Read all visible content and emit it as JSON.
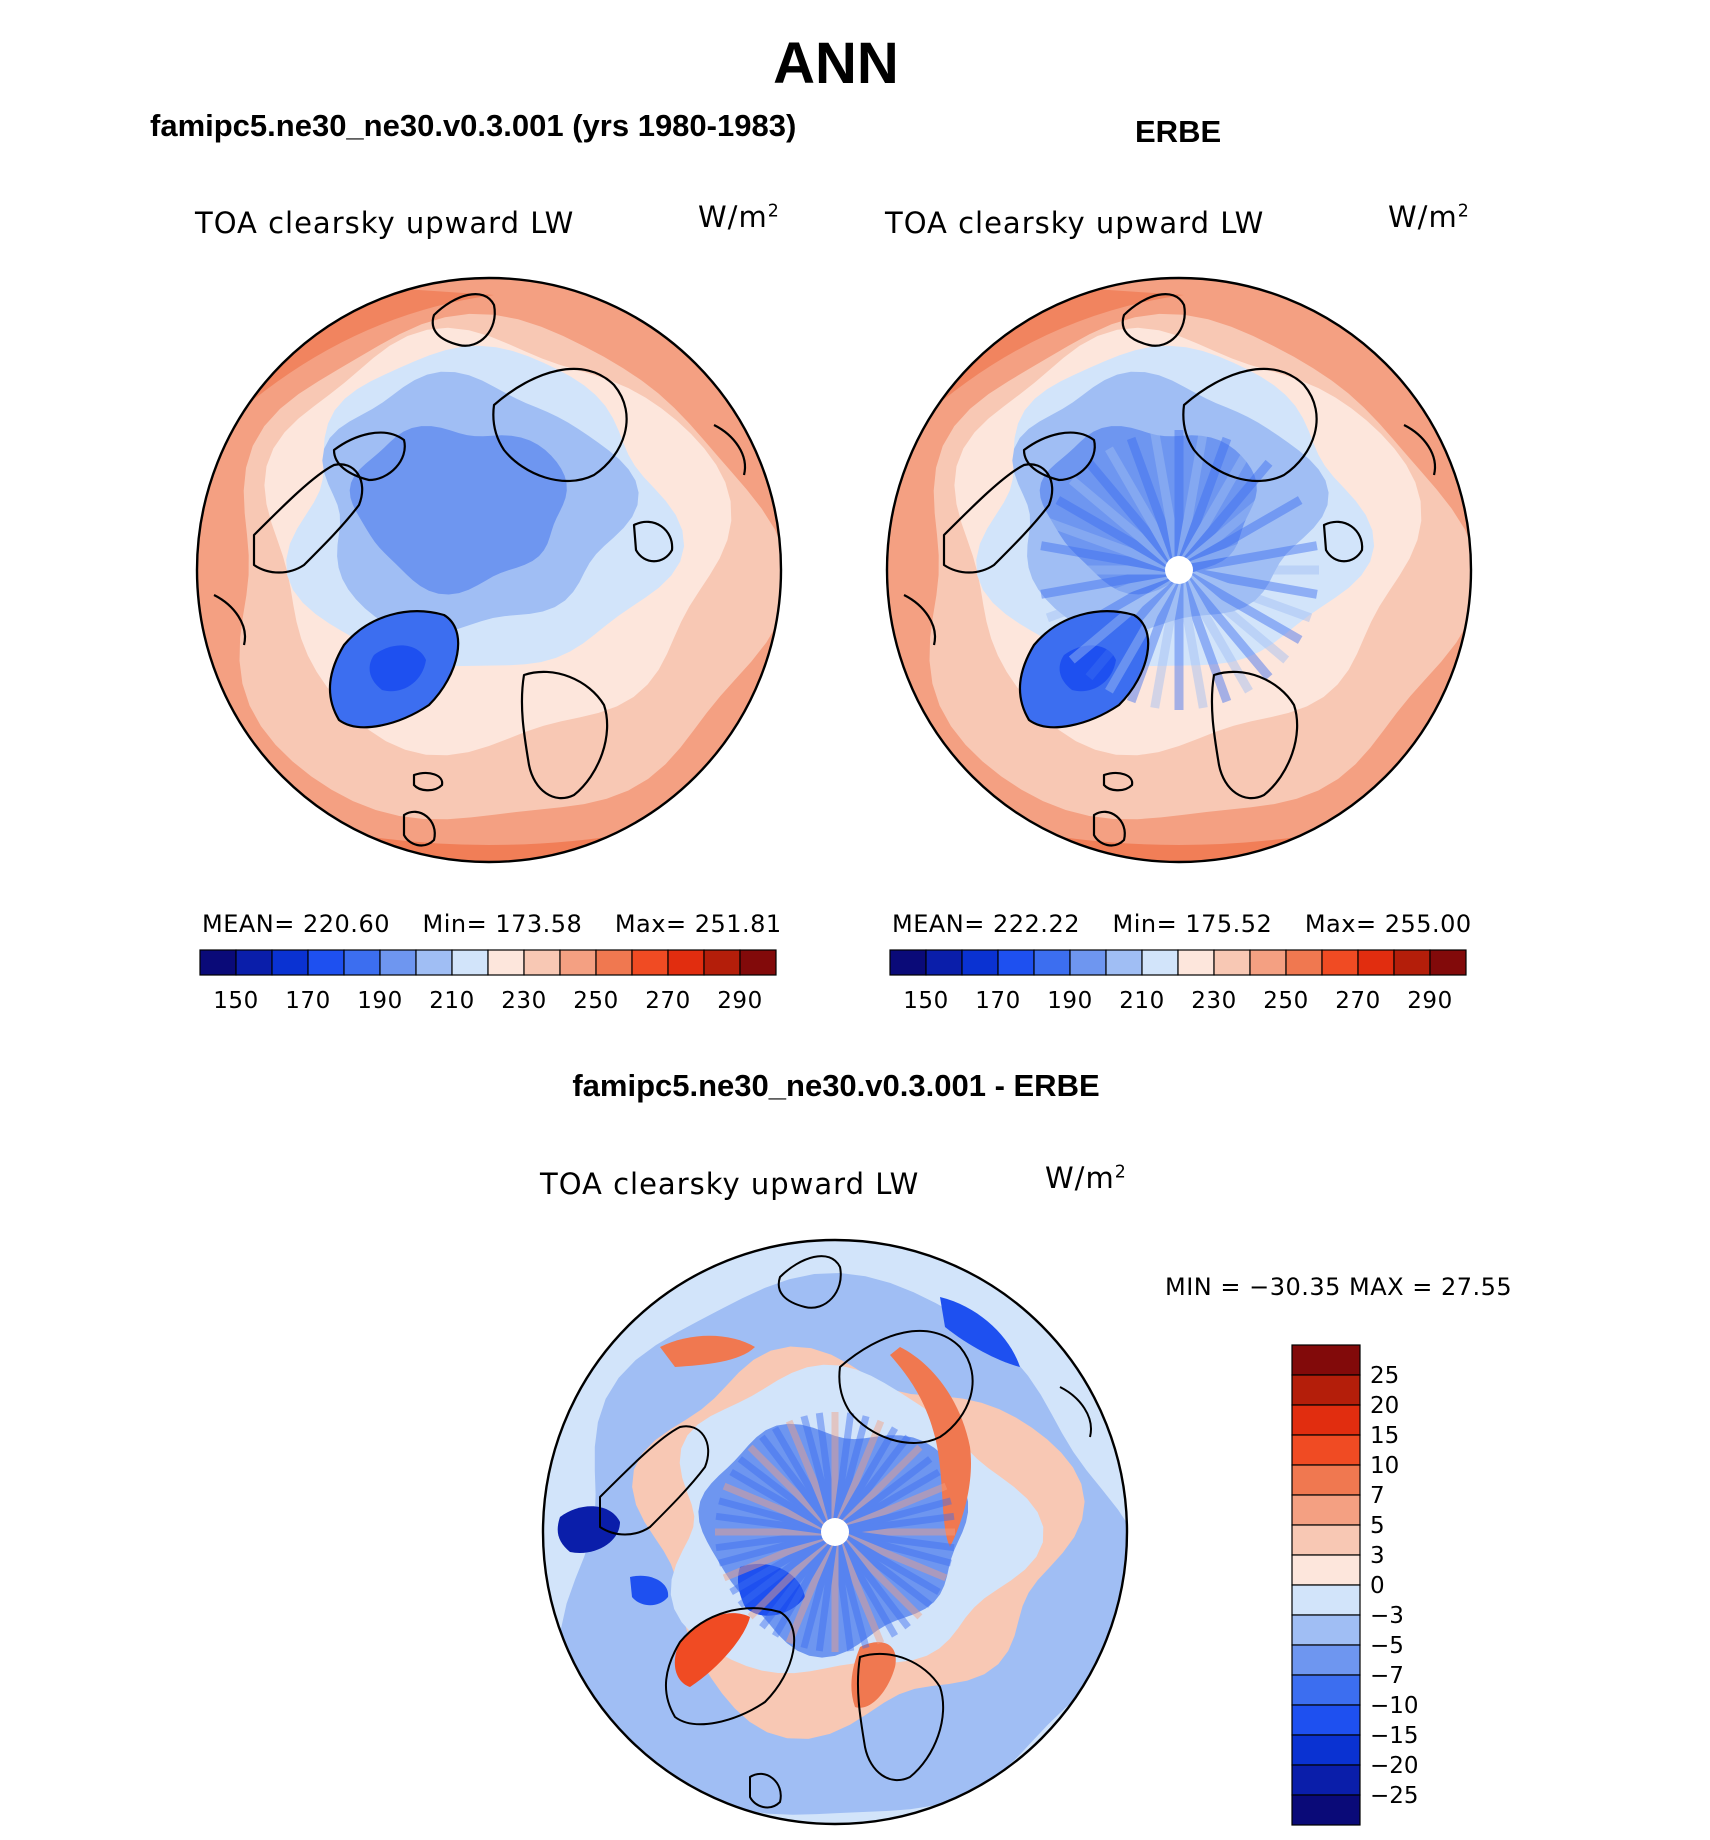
{
  "title": "ANN",
  "colors": {
    "map_scale": [
      "#0a0a78",
      "#0a1eaa",
      "#0a32d2",
      "#1e50f0",
      "#3c6ef0",
      "#6e96f0",
      "#a0bef4",
      "#d2e4fa",
      "#fde6dc",
      "#f8c8b4",
      "#f4a082",
      "#f07850",
      "#f04b23",
      "#e12d0f",
      "#b41e0a",
      "#820a0a"
    ],
    "diff_scale": [
      "#0a0a78",
      "#0a1eaa",
      "#0a32d2",
      "#1e50f0",
      "#3c6ef0",
      "#6e96f0",
      "#a0bef4",
      "#d2e4fa",
      "#fde6dc",
      "#f8c8b4",
      "#f4a082",
      "#f07850",
      "#f04b23",
      "#e12d0f",
      "#b41e0a",
      "#820a0a"
    ]
  },
  "panels": [
    {
      "id": "model",
      "subtitle": "famipc5.ne30_ne30.v0.3.001 (yrs 1980-1983)",
      "left_label": "TOA clearsky upward LW",
      "units_base": "W/m",
      "units_exp": "2",
      "stats": {
        "mean_label": "MEAN=",
        "mean": "220.60",
        "min_label": "Min=",
        "min": "173.58",
        "max_label": "Max=",
        "max": "251.81"
      }
    },
    {
      "id": "obs",
      "subtitle": "ERBE",
      "left_label": "TOA clearsky upward LW",
      "units_base": "W/m",
      "units_exp": "2",
      "stats": {
        "mean_label": "MEAN=",
        "mean": "222.22",
        "min_label": "Min=",
        "min": "175.52",
        "max_label": "Max=",
        "max": "255.00"
      }
    }
  ],
  "colorbar_map": {
    "tick_labels": [
      "150",
      "170",
      "190",
      "210",
      "230",
      "250",
      "270",
      "290"
    ]
  },
  "diff": {
    "subtitle": "famipc5.ne30_ne30.v0.3.001 - ERBE",
    "left_label": "TOA clearsky upward LW",
    "units_base": "W/m",
    "units_exp": "2",
    "minmax_text": "MIN = −30.35 MAX =  27.55",
    "levels": [
      "25",
      "20",
      "15",
      "10",
      "7",
      "5",
      "3",
      "0",
      "−3",
      "−5",
      "−7",
      "−10",
      "−15",
      "−20",
      "−25"
    ]
  },
  "chart_data": [
    {
      "type": "heatmap",
      "title": "famipc5.ne30_ne30.v0.3.001 (yrs 1980-1983)",
      "projection": "polar stereographic, north pole",
      "variable": "TOA clearsky upward LW",
      "units": "W/m2",
      "mean": 220.6,
      "min": 173.58,
      "max": 251.81,
      "colorbar_ticks": [
        150,
        170,
        190,
        210,
        230,
        250,
        270,
        290
      ]
    },
    {
      "type": "heatmap",
      "title": "ERBE",
      "projection": "polar stereographic, north pole",
      "variable": "TOA clearsky upward LW",
      "units": "W/m2",
      "mean": 222.22,
      "min": 175.52,
      "max": 255.0,
      "colorbar_ticks": [
        150,
        170,
        190,
        210,
        230,
        250,
        270,
        290
      ]
    },
    {
      "type": "heatmap",
      "title": "famipc5.ne30_ne30.v0.3.001 - ERBE",
      "projection": "polar stereographic, north pole",
      "variable": "TOA clearsky upward LW",
      "units": "W/m2",
      "min": -30.35,
      "max": 27.55,
      "contour_levels": [
        -25,
        -20,
        -15,
        -10,
        -7,
        -5,
        -3,
        0,
        3,
        5,
        7,
        10,
        15,
        20,
        25
      ]
    }
  ]
}
